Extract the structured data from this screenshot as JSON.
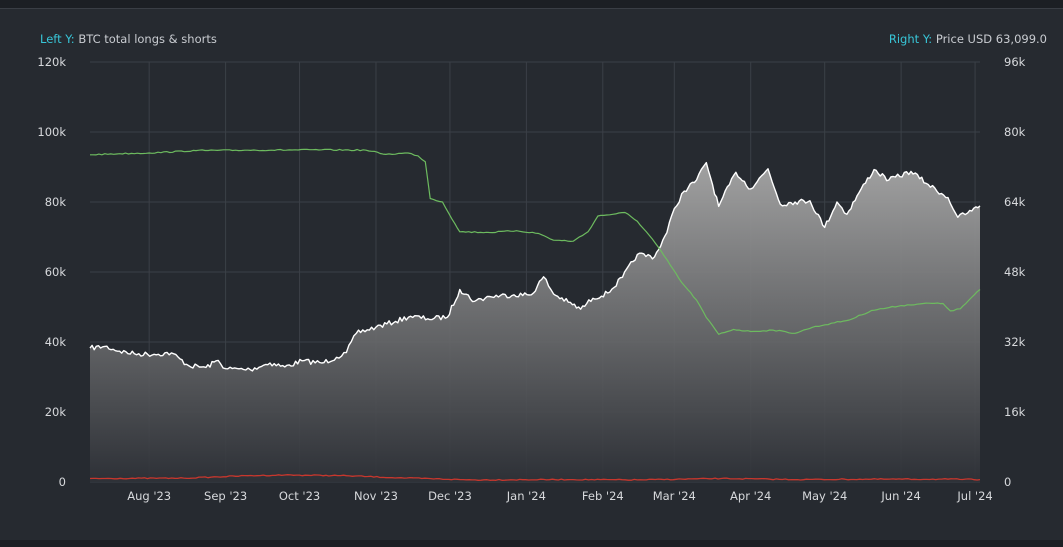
{
  "legend": {
    "left_key": "Left Y:",
    "left_text": "BTC total longs & shorts",
    "right_key": "Right Y:",
    "right_text": "Price USD 63,099.0"
  },
  "colors": {
    "background": "#262a30",
    "grid": "#3b4047",
    "price_line": "#ffffff",
    "longs_line": "#6dbb5f",
    "shorts_line": "#c8372d",
    "accent": "#38c6d8"
  },
  "chart_data": {
    "type": "area",
    "left_axis": {
      "ticks": [
        "0",
        "20k",
        "40k",
        "60k",
        "80k",
        "100k",
        "120k"
      ],
      "range": [
        0,
        120000
      ]
    },
    "right_axis": {
      "ticks": [
        "0",
        "16k",
        "32k",
        "48k",
        "64k",
        "80k",
        "96k"
      ],
      "range": [
        0,
        96000
      ]
    },
    "x_ticks": [
      "Aug '23",
      "Sep '23",
      "Oct '23",
      "Nov '23",
      "Dec '23",
      "Jan '24",
      "Feb '24",
      "Mar '24",
      "Apr '24",
      "May '24",
      "Jun '24",
      "Jul '24"
    ],
    "x_range": [
      "2023-07-08",
      "2024-07-03"
    ],
    "grid": true,
    "series": [
      {
        "axis": "right",
        "style": "area",
        "points": [
          [
            "2023-07-08",
            30600
          ],
          [
            "2023-07-14",
            31000
          ],
          [
            "2023-07-20",
            29900
          ],
          [
            "2023-07-26",
            29300
          ],
          [
            "2023-08-03",
            29200
          ],
          [
            "2023-08-10",
            29500
          ],
          [
            "2023-08-17",
            26600
          ],
          [
            "2023-08-24",
            26200
          ],
          [
            "2023-08-29",
            27800
          ],
          [
            "2023-09-01",
            25900
          ],
          [
            "2023-09-11",
            25700
          ],
          [
            "2023-09-19",
            27200
          ],
          [
            "2023-09-25",
            26300
          ],
          [
            "2023-10-02",
            27700
          ],
          [
            "2023-10-10",
            27200
          ],
          [
            "2023-10-16",
            28500
          ],
          [
            "2023-10-20",
            29600
          ],
          [
            "2023-10-24",
            34000
          ],
          [
            "2023-11-01",
            35400
          ],
          [
            "2023-11-09",
            36700
          ],
          [
            "2023-11-15",
            37900
          ],
          [
            "2023-11-22",
            37300
          ],
          [
            "2023-11-30",
            37700
          ],
          [
            "2023-12-05",
            44000
          ],
          [
            "2023-12-11",
            41300
          ],
          [
            "2023-12-17",
            42400
          ],
          [
            "2023-12-27",
            42800
          ],
          [
            "2024-01-03",
            42800
          ],
          [
            "2024-01-08",
            46900
          ],
          [
            "2024-01-12",
            43000
          ],
          [
            "2024-01-18",
            41100
          ],
          [
            "2024-01-23",
            39500
          ],
          [
            "2024-01-28",
            42000
          ],
          [
            "2024-02-03",
            43200
          ],
          [
            "2024-02-09",
            46800
          ],
          [
            "2024-02-15",
            52000
          ],
          [
            "2024-02-22",
            51500
          ],
          [
            "2024-02-27",
            57000
          ],
          [
            "2024-03-01",
            62500
          ],
          [
            "2024-03-05",
            66500
          ],
          [
            "2024-03-10",
            69000
          ],
          [
            "2024-03-14",
            73000
          ],
          [
            "2024-03-19",
            63000
          ],
          [
            "2024-03-26",
            70800
          ],
          [
            "2024-04-01",
            67000
          ],
          [
            "2024-04-08",
            71600
          ],
          [
            "2024-04-13",
            63500
          ],
          [
            "2024-04-19",
            64000
          ],
          [
            "2024-04-25",
            64300
          ],
          [
            "2024-05-01",
            58200
          ],
          [
            "2024-05-06",
            64000
          ],
          [
            "2024-05-10",
            61200
          ],
          [
            "2024-05-15",
            66200
          ],
          [
            "2024-05-21",
            71400
          ],
          [
            "2024-05-27",
            69000
          ],
          [
            "2024-06-05",
            71000
          ],
          [
            "2024-06-12",
            68000
          ],
          [
            "2024-06-20",
            65000
          ],
          [
            "2024-06-24",
            60500
          ],
          [
            "2024-06-28",
            61500
          ],
          [
            "2024-07-03",
            63100
          ]
        ]
      },
      {
        "axis": "left",
        "style": "line",
        "points": [
          [
            "2023-07-08",
            93500
          ],
          [
            "2023-07-20",
            93800
          ],
          [
            "2023-08-01",
            94000
          ],
          [
            "2023-08-20",
            94700
          ],
          [
            "2023-09-10",
            94800
          ],
          [
            "2023-10-10",
            94900
          ],
          [
            "2023-10-28",
            94800
          ],
          [
            "2023-11-05",
            93600
          ],
          [
            "2023-11-14",
            94000
          ],
          [
            "2023-11-18",
            93200
          ],
          [
            "2023-11-21",
            91500
          ],
          [
            "2023-11-23",
            81000
          ],
          [
            "2023-11-28",
            80000
          ],
          [
            "2023-12-03",
            73800
          ],
          [
            "2023-12-05",
            71500
          ],
          [
            "2023-12-17",
            71300
          ],
          [
            "2023-12-28",
            71800
          ],
          [
            "2024-01-06",
            71000
          ],
          [
            "2024-01-12",
            69100
          ],
          [
            "2024-01-20",
            68800
          ],
          [
            "2024-01-26",
            71500
          ],
          [
            "2024-01-30",
            76000
          ],
          [
            "2024-02-05",
            76500
          ],
          [
            "2024-02-10",
            77000
          ],
          [
            "2024-02-15",
            74500
          ],
          [
            "2024-02-21",
            69500
          ],
          [
            "2024-02-26",
            64500
          ],
          [
            "2024-03-04",
            57000
          ],
          [
            "2024-03-10",
            52000
          ],
          [
            "2024-03-14",
            47000
          ],
          [
            "2024-03-19",
            42200
          ],
          [
            "2024-03-25",
            43600
          ],
          [
            "2024-04-01",
            43000
          ],
          [
            "2024-04-10",
            43400
          ],
          [
            "2024-04-19",
            42500
          ],
          [
            "2024-04-26",
            44200
          ],
          [
            "2024-05-05",
            45500
          ],
          [
            "2024-05-11",
            46300
          ],
          [
            "2024-05-20",
            49000
          ],
          [
            "2024-06-01",
            50400
          ],
          [
            "2024-06-10",
            51000
          ],
          [
            "2024-06-18",
            51000
          ],
          [
            "2024-06-21",
            48900
          ],
          [
            "2024-06-25",
            49500
          ],
          [
            "2024-07-03",
            55000
          ]
        ]
      },
      {
        "axis": "left",
        "style": "line",
        "points": [
          [
            "2023-07-08",
            1000
          ],
          [
            "2023-08-15",
            1100
          ],
          [
            "2023-09-10",
            1800
          ],
          [
            "2023-09-25",
            2000
          ],
          [
            "2023-10-20",
            1800
          ],
          [
            "2023-11-10",
            1200
          ],
          [
            "2023-12-10",
            600
          ],
          [
            "2024-01-20",
            700
          ],
          [
            "2024-02-15",
            600
          ],
          [
            "2024-03-20",
            1000
          ],
          [
            "2024-04-20",
            700
          ],
          [
            "2024-05-20",
            800
          ],
          [
            "2024-06-20",
            800
          ],
          [
            "2024-07-03",
            700
          ]
        ]
      }
    ]
  }
}
